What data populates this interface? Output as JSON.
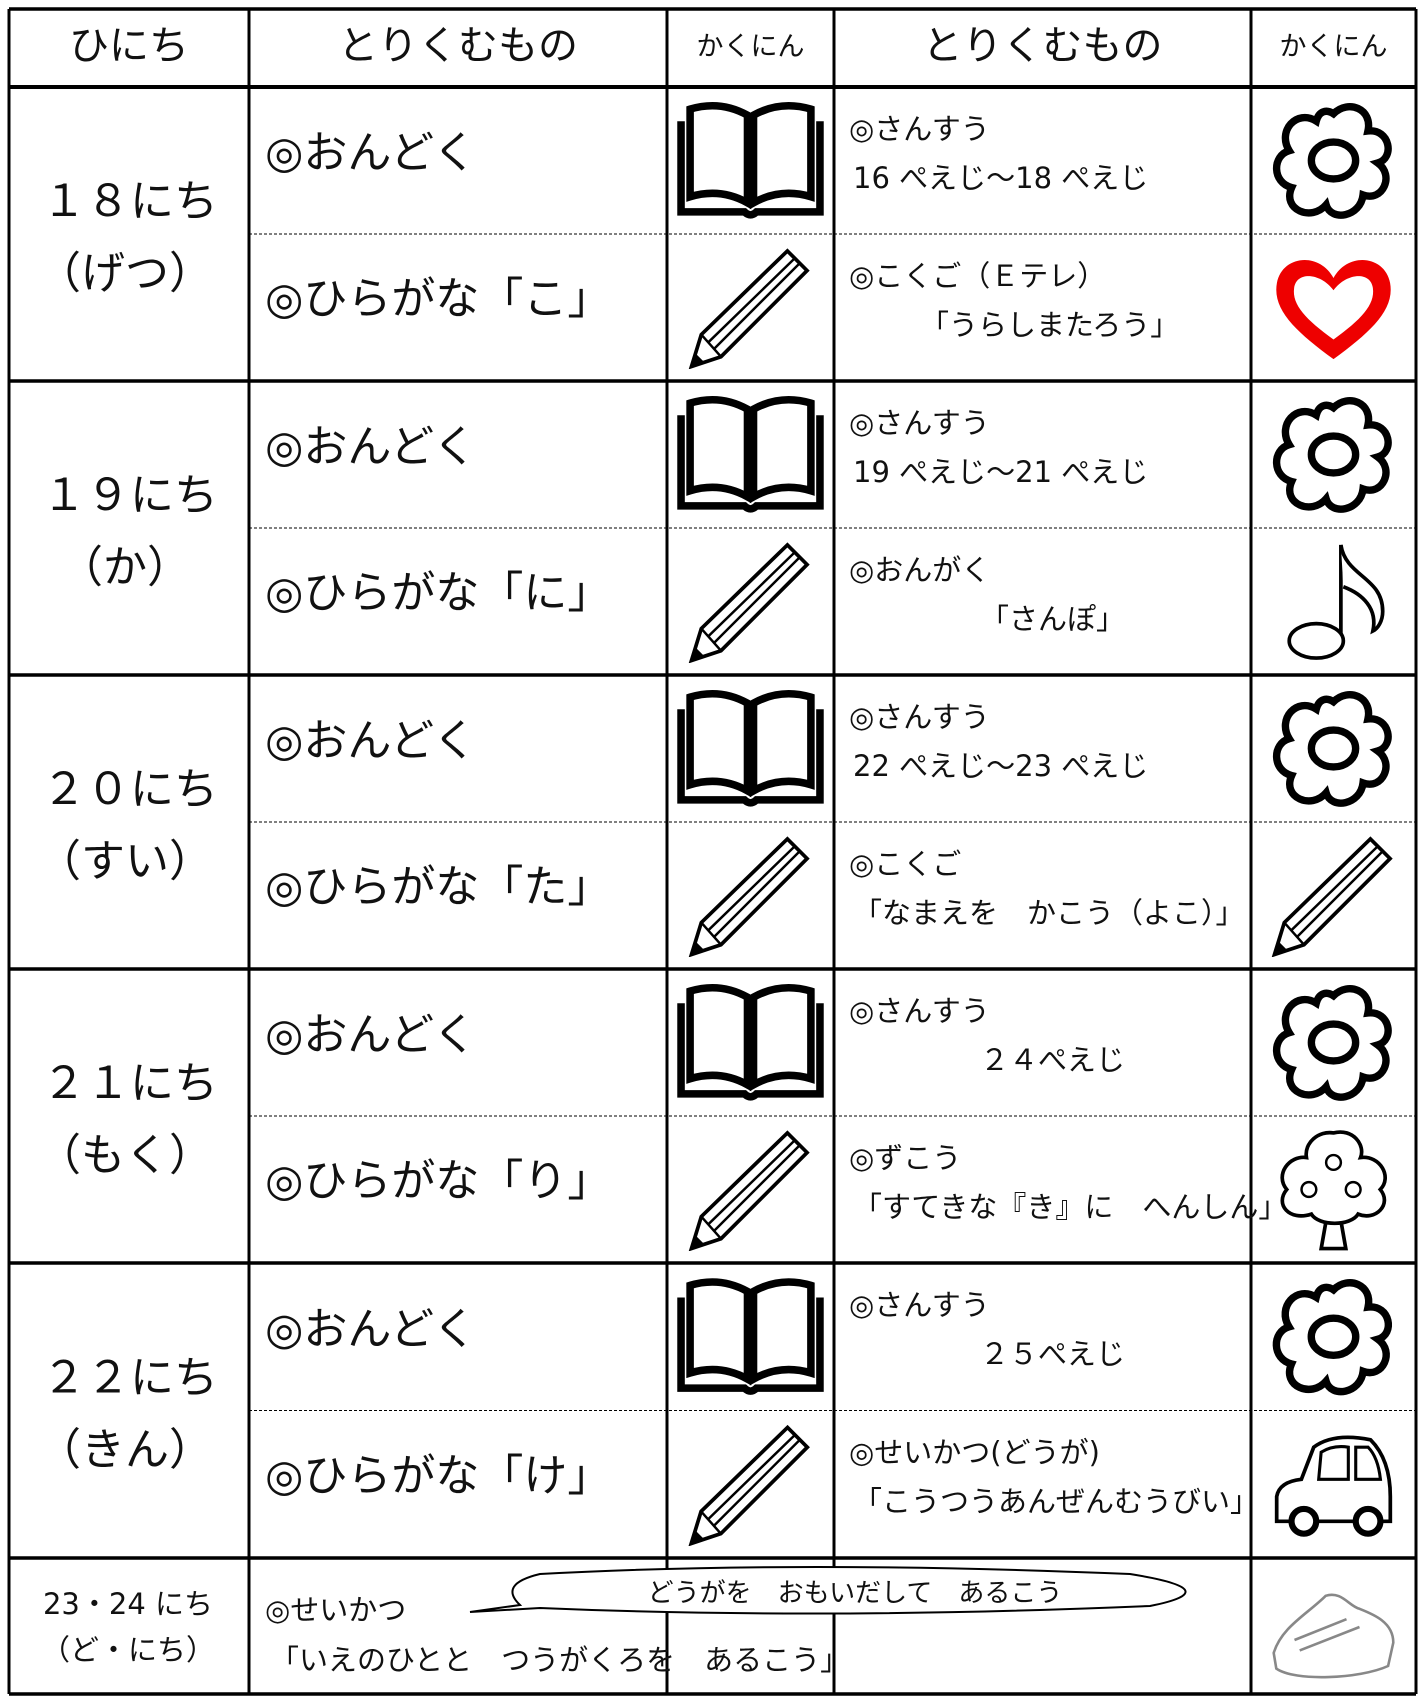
{
  "header": {
    "date": "ひにち",
    "task1": "とりくむもの",
    "check1": "かくにん",
    "task2": "とりくむもの",
    "check2": "かくにん"
  },
  "days": [
    {
      "date": "１８にち",
      "weekday": "（げつ）",
      "rows": [
        {
          "left": "◎おんどく",
          "right": [
            "◎さんすう",
            "16 ぺえじ～18 ぺえじ"
          ]
        },
        {
          "left": "◎ひらがな「こ」",
          "right": [
            "◎こくご（Ｅテレ）",
            "「うらしまたろう」"
          ]
        }
      ]
    },
    {
      "date": "１９にち",
      "weekday": "（か）",
      "rows": [
        {
          "left": "◎おんどく",
          "right": [
            "◎さんすう",
            "19 ぺえじ～21 ぺえじ"
          ]
        },
        {
          "left": "◎ひらがな「に」",
          "right": [
            "◎おんがく",
            "「さんぽ」"
          ]
        }
      ]
    },
    {
      "date": "２０にち",
      "weekday": "（すい）",
      "rows": [
        {
          "left": "◎おんどく",
          "right": [
            "◎さんすう",
            "22 ぺえじ～23 ぺえじ"
          ]
        },
        {
          "left": "◎ひらがな「た」",
          "right": [
            "◎こくご",
            "「なまえを　かこう（よこ）」"
          ]
        }
      ]
    },
    {
      "date": "２１にち",
      "weekday": "（もく）",
      "rows": [
        {
          "left": "◎おんどく",
          "right": [
            "◎さんすう",
            "２４ぺえじ"
          ]
        },
        {
          "left": "◎ひらがな「り」",
          "right": [
            "◎ずこう",
            "「すてきな『き』に　へんしん」"
          ]
        }
      ]
    },
    {
      "date": "２２にち",
      "weekday": "（きん）",
      "rows": [
        {
          "left": "◎おんどく",
          "right": [
            "◎さんすう",
            "２５ぺえじ"
          ]
        },
        {
          "left": "◎ひらがな「け」",
          "right": [
            "◎せいかつ(どうが)",
            "「こうつうあんぜんむうびい」"
          ]
        }
      ]
    }
  ],
  "weekend": {
    "date": "23・24 にち",
    "weekday": "（ど・にち）",
    "title": "◎せいかつ",
    "body": "「いえのひとと　つうがくろを　あるこう」",
    "bubble": "どうがを　おもいだして　あるこう"
  }
}
